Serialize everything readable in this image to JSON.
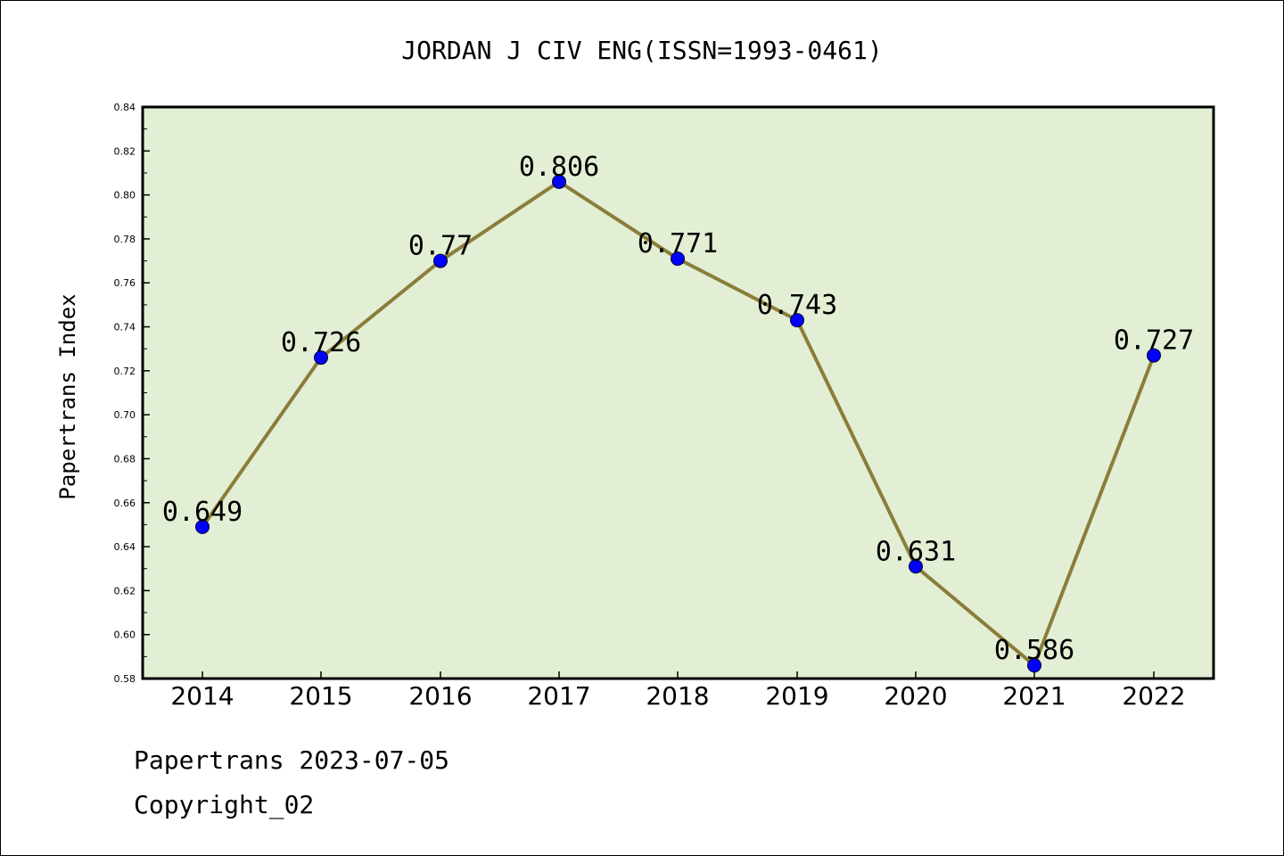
{
  "chart_data": {
    "type": "line",
    "title": "JORDAN J CIV ENG(ISSN=1993-0461)",
    "ylabel": "Papertrans Index",
    "xlabel": "",
    "categories": [
      "2014",
      "2015",
      "2016",
      "2017",
      "2018",
      "2019",
      "2020",
      "2021",
      "2022"
    ],
    "values": [
      0.649,
      0.726,
      0.77,
      0.806,
      0.771,
      0.743,
      0.631,
      0.586,
      0.727
    ],
    "data_labels": [
      "0.649",
      "0.726",
      "0.77",
      "0.806",
      "0.771",
      "0.743",
      "0.631",
      "0.586",
      "0.727"
    ],
    "ylim": [
      0.58,
      0.84
    ],
    "yticks": [
      "0.58",
      "0.60",
      "0.62",
      "0.64",
      "0.66",
      "0.68",
      "0.70",
      "0.72",
      "0.74",
      "0.76",
      "0.78",
      "0.80",
      "0.82",
      "0.84"
    ],
    "grid": false,
    "colors": {
      "plot_background": "#e2efd5",
      "line": "#8b7d3a",
      "marker": "#0000ff"
    }
  },
  "footer": {
    "source": "Papertrans 2023-07-05",
    "copyright": "Copyright_02"
  }
}
